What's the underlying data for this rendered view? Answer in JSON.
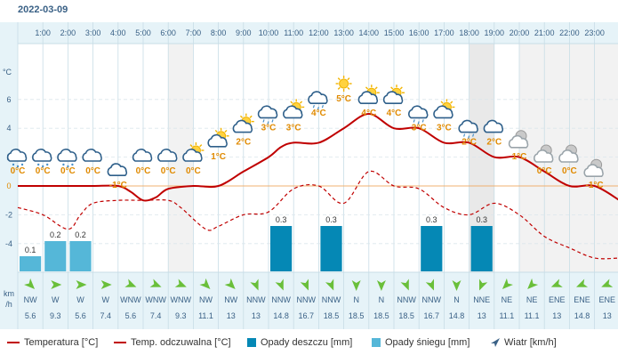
{
  "date": "2022-03-09",
  "axis": {
    "unit_temp": "°C",
    "unit_wind_1": "km",
    "unit_wind_2": "/h",
    "y_ticks": [
      "6",
      "4",
      "2",
      "0",
      "-2",
      "-4"
    ]
  },
  "colors": {
    "temp": "#c00000",
    "rain": "#0588b5",
    "snow": "#55b7d8",
    "wind_arrow": "#6abf3a",
    "label_orange": "#e08a00",
    "label_blue": "#3a7fc8"
  },
  "chart_data": {
    "type": "line",
    "hours": [
      "1:00",
      "2:00",
      "3:00",
      "4:00",
      "5:00",
      "6:00",
      "7:00",
      "8:00",
      "9:00",
      "10:00",
      "11:00",
      "12:00",
      "13:00",
      "14:00",
      "15:00",
      "16:00",
      "17:00",
      "18:00",
      "19:00",
      "20:00",
      "21:00",
      "22:00",
      "23:00"
    ],
    "temp_labels": [
      "0°C",
      "0°C",
      "0°C",
      "0°C",
      "-1°C",
      "0°C",
      "0°C",
      "0°C",
      "1°C",
      "2°C",
      "3°C",
      "3°C",
      "4°C",
      "5°C",
      "4°C",
      "4°C",
      "3°C",
      "3°C",
      "2°C",
      "2°C",
      "1°C",
      "0°C",
      "0°C",
      "-1°C"
    ],
    "temperature_points": [
      [
        0.5,
        0
      ],
      [
        1,
        0
      ],
      [
        2,
        0
      ],
      [
        3,
        0
      ],
      [
        4,
        0
      ],
      [
        4.5,
        -0.4
      ],
      [
        5,
        -1
      ],
      [
        5.5,
        -0.8
      ],
      [
        6,
        -0.2
      ],
      [
        7,
        0
      ],
      [
        8,
        0
      ],
      [
        9,
        1
      ],
      [
        10,
        2
      ],
      [
        10.5,
        2.7
      ],
      [
        11,
        3
      ],
      [
        12,
        3
      ],
      [
        13,
        4
      ],
      [
        14,
        5
      ],
      [
        15,
        4
      ],
      [
        16,
        4
      ],
      [
        17,
        3
      ],
      [
        18,
        3
      ],
      [
        19,
        2
      ],
      [
        20,
        2
      ],
      [
        21,
        1
      ],
      [
        22,
        0
      ],
      [
        23,
        0
      ],
      [
        24,
        -1
      ]
    ],
    "feels_like_points": [
      [
        0.5,
        -1.5
      ],
      [
        1,
        -2
      ],
      [
        2,
        -3
      ],
      [
        2.5,
        -2
      ],
      [
        3,
        -1.2
      ],
      [
        4,
        -1
      ],
      [
        5,
        -1
      ],
      [
        6,
        -1
      ],
      [
        6.5,
        -1.5
      ],
      [
        7.5,
        -3
      ],
      [
        8,
        -2.8
      ],
      [
        9,
        -2
      ],
      [
        10,
        -1.8
      ],
      [
        11,
        -0.2
      ],
      [
        12,
        0
      ],
      [
        13,
        -1.2
      ],
      [
        14,
        1
      ],
      [
        15,
        0
      ],
      [
        16,
        -0.2
      ],
      [
        17,
        -1.5
      ],
      [
        18,
        -2
      ],
      [
        19,
        -1.2
      ],
      [
        20,
        -2
      ],
      [
        21,
        -3.5
      ],
      [
        22,
        -4.3
      ],
      [
        23,
        -5
      ],
      [
        24,
        -5
      ]
    ],
    "rain_mm": [
      {
        "hour_index": 10,
        "value": 0.3,
        "label": "0.3"
      },
      {
        "hour_index": 12,
        "value": 0.3,
        "label": "0.3"
      },
      {
        "hour_index": 16,
        "value": 0.3,
        "label": "0.3"
      },
      {
        "hour_index": 18,
        "value": 0.3,
        "label": "0.3"
      }
    ],
    "snow_mm": [
      {
        "hour_index": 0,
        "value": 0.1,
        "label": "0.1"
      },
      {
        "hour_index": 1,
        "value": 0.2,
        "label": "0.2"
      },
      {
        "hour_index": 2,
        "value": 0.2,
        "label": "0.2"
      }
    ],
    "ylim": [
      -6,
      8
    ],
    "icons": [
      "cloud-snow",
      "cloud-snow",
      "cloud-snow",
      "cloud",
      "cloud",
      "cloud",
      "cloud",
      "partly-sunny",
      "partly-sunny",
      "partly-sunny",
      "cloud-rain",
      "partly-sunny",
      "cloud-rain",
      "sunny",
      "partly-sunny",
      "partly-sunny",
      "cloud-rain",
      "partly-sunny",
      "cloud-rain",
      "cloud",
      "night-cloud",
      "night-cloud",
      "night-cloud",
      "night-cloud"
    ],
    "wind_dir": [
      "NW",
      "W",
      "W",
      "W",
      "WNW",
      "WNW",
      "WNW",
      "NW",
      "NW",
      "NNW",
      "NNW",
      "NNW",
      "NNW",
      "N",
      "N",
      "NNW",
      "NNW",
      "N",
      "NNE",
      "NE",
      "NE",
      "ENE",
      "ENE",
      "ENE"
    ],
    "wind_speed": [
      "5.6",
      "9.3",
      "5.6",
      "7.4",
      "5.6",
      "7.4",
      "9.3",
      "11.1",
      "13",
      "13",
      "14.8",
      "16.7",
      "18.5",
      "18.5",
      "18.5",
      "18.5",
      "16.7",
      "14.8",
      "13",
      "11.1",
      "11.1",
      "13",
      "14.8",
      "13"
    ]
  },
  "legend": {
    "temperature": "Temperatura [°C]",
    "feels_like": "Temp. odczuwalna [°C]",
    "rain": "Opady deszczu [mm]",
    "snow": "Opady śniegu [mm]",
    "wind": "Wiatr [km/h]"
  }
}
